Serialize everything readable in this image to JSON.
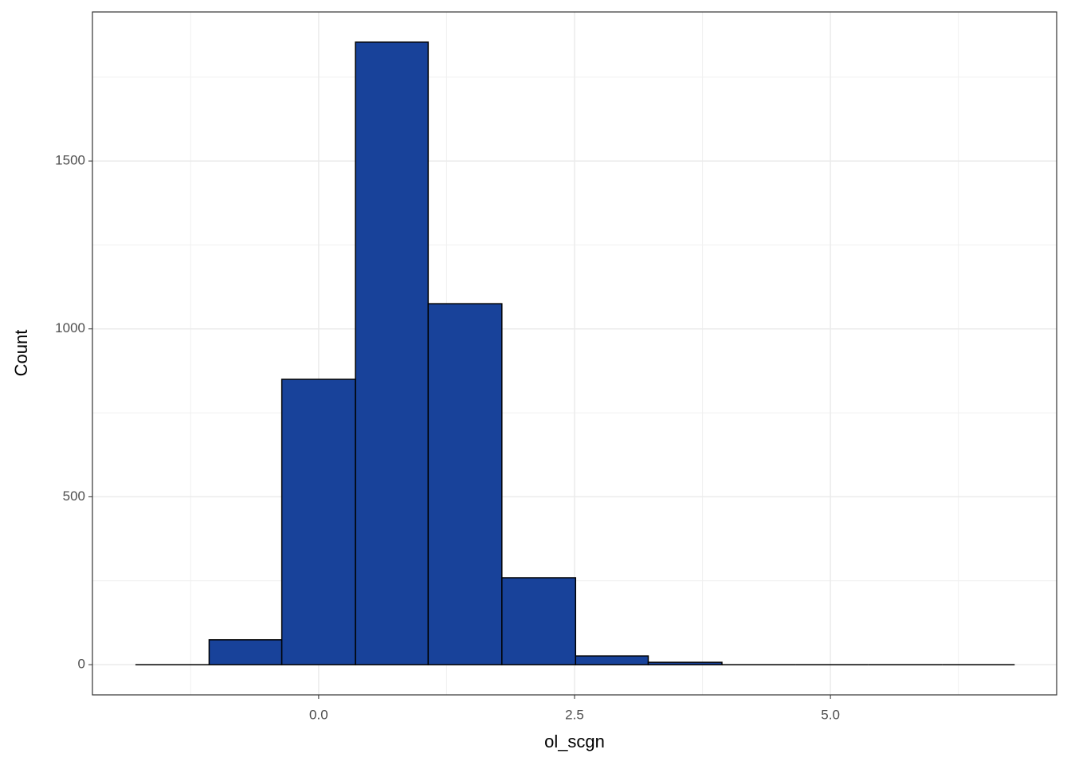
{
  "chart_data": {
    "type": "histogram",
    "x_label": "ol_scgn",
    "y_label": "Count",
    "bins": [
      -1.79,
      -1.07,
      -0.36,
      0.36,
      1.07,
      1.79,
      2.51,
      3.22,
      3.94,
      4.66,
      5.37,
      6.09,
      6.8
    ],
    "values": [
      0,
      74,
      850,
      1854,
      1075,
      259,
      26,
      7,
      0,
      0,
      0,
      0
    ],
    "color": "#18429a",
    "xlim": [
      -2.21,
      7.21
    ],
    "xticks": [
      {
        "value": 0,
        "label": "0.0"
      },
      {
        "value": 2.5,
        "label": "2.5"
      },
      {
        "value": 5,
        "label": "5.0"
      }
    ],
    "ylim": [
      -90,
      1944
    ],
    "yticks": [
      0,
      500,
      1000,
      1500
    ],
    "grid": true
  }
}
